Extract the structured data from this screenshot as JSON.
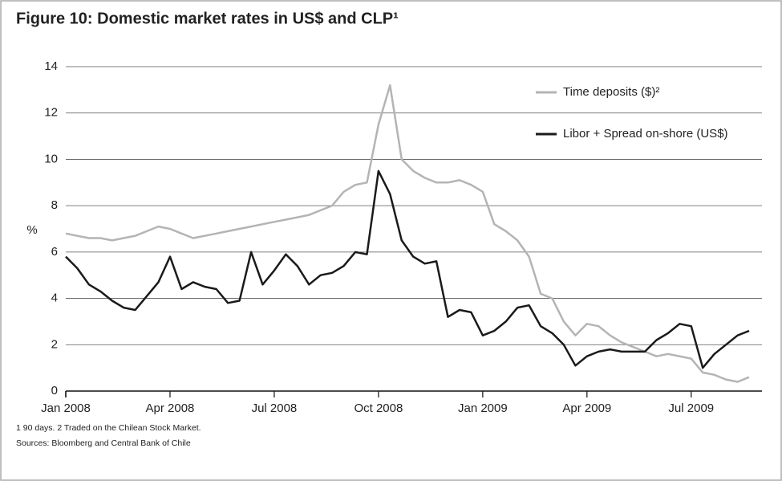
{
  "chart_data": {
    "type": "line",
    "title": "Figure 10: Domestic market rates in US$ and CLP¹",
    "ylabel": "%",
    "footnotes": [
      "1  90 days. 2  Traded on the Chilean Stock Market.",
      "Sources: Bloomberg and Central Bank of Chile"
    ],
    "categories": [
      "Jan 2008",
      null,
      null,
      null,
      null,
      null,
      null,
      null,
      null,
      "Apr 2008",
      null,
      null,
      null,
      null,
      null,
      null,
      null,
      null,
      "Jul 2008",
      null,
      null,
      null,
      null,
      null,
      null,
      null,
      null,
      "Oct 2008",
      null,
      null,
      null,
      null,
      null,
      null,
      null,
      null,
      "Jan 2009",
      null,
      null,
      null,
      null,
      null,
      null,
      null,
      null,
      "Apr 2009",
      null,
      null,
      null,
      null,
      null,
      null,
      null,
      null,
      "Jul 2009",
      null,
      null,
      null,
      null,
      null
    ],
    "series": [
      {
        "name": "Time deposits ($)²",
        "color": "#b4b4b4",
        "values": [
          6.8,
          6.7,
          6.6,
          6.6,
          6.5,
          6.6,
          6.7,
          6.9,
          7.1,
          7.0,
          6.8,
          6.6,
          6.7,
          6.8,
          6.9,
          7.0,
          7.1,
          7.2,
          7.3,
          7.4,
          7.5,
          7.6,
          7.8,
          8.0,
          8.6,
          8.9,
          9.0,
          11.5,
          13.2,
          10.0,
          9.5,
          9.2,
          9.0,
          9.0,
          9.1,
          8.9,
          8.6,
          7.2,
          6.9,
          6.5,
          5.8,
          4.2,
          4.0,
          3.0,
          2.4,
          2.9,
          2.8,
          2.4,
          2.1,
          1.9,
          1.7,
          1.5,
          1.6,
          1.5,
          1.4,
          0.8,
          0.7,
          0.5,
          0.4,
          0.6
        ]
      },
      {
        "name": "Libor + Spread on-shore (US$)",
        "color": "#1a1a1a",
        "values": [
          5.8,
          5.3,
          4.6,
          4.3,
          3.9,
          3.6,
          3.5,
          4.1,
          4.7,
          5.8,
          4.4,
          4.7,
          4.5,
          4.4,
          3.8,
          3.9,
          6.0,
          4.6,
          5.2,
          5.9,
          5.4,
          4.6,
          5.0,
          5.1,
          5.4,
          6.0,
          5.9,
          9.5,
          8.5,
          6.5,
          5.8,
          5.5,
          5.6,
          3.2,
          3.5,
          3.4,
          2.4,
          2.6,
          3.0,
          3.6,
          3.7,
          2.8,
          2.5,
          2.0,
          1.1,
          1.5,
          1.7,
          1.8,
          1.7,
          1.7,
          1.7,
          2.2,
          2.5,
          2.9,
          2.8,
          1.0,
          1.6,
          2.0,
          2.4,
          2.6
        ]
      }
    ],
    "ylim": [
      0,
      14
    ],
    "yticks": [
      0,
      2,
      4,
      6,
      8,
      10,
      12,
      14
    ],
    "grid": true,
    "legend": "upper right"
  }
}
